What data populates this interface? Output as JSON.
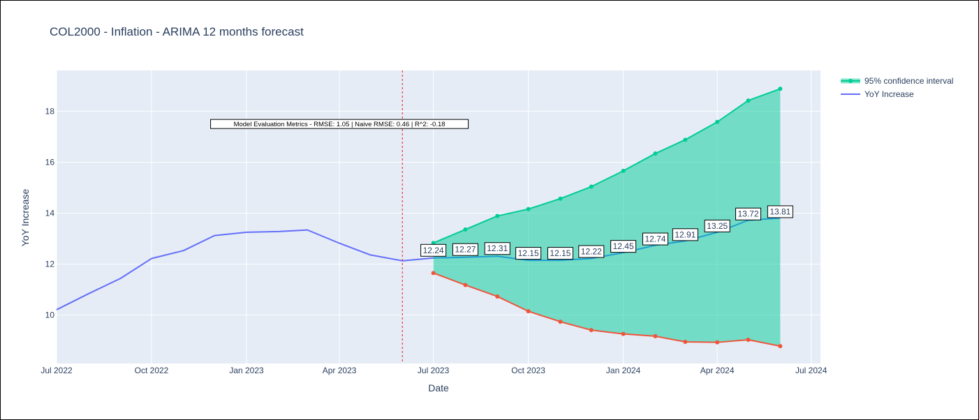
{
  "chart_data": {
    "type": "line",
    "title": "COL2000 - Inflation - ARIMA 12 months forecast",
    "xlabel": "Date",
    "ylabel": "YoY Increase",
    "xlim": [
      "2022-07-01",
      "2024-07-10"
    ],
    "ylim": [
      8.1,
      19.6
    ],
    "x_ticks": [
      {
        "date": "2022-07-01",
        "label": "Jul 2022"
      },
      {
        "date": "2022-10-01",
        "label": "Oct 2022"
      },
      {
        "date": "2023-01-01",
        "label": "Jan 2023"
      },
      {
        "date": "2023-04-01",
        "label": "Apr 2023"
      },
      {
        "date": "2023-07-01",
        "label": "Jul 2023"
      },
      {
        "date": "2023-10-01",
        "label": "Oct 2023"
      },
      {
        "date": "2024-01-01",
        "label": "Jan 2024"
      },
      {
        "date": "2024-04-01",
        "label": "Apr 2024"
      },
      {
        "date": "2024-07-01",
        "label": "Jul 2024"
      }
    ],
    "y_ticks": [
      {
        "value": 10,
        "label": "10"
      },
      {
        "value": 12,
        "label": "12"
      },
      {
        "value": 14,
        "label": "14"
      },
      {
        "value": 16,
        "label": "16"
      },
      {
        "value": 18,
        "label": "18"
      }
    ],
    "grid": true,
    "legend_position": "top-right",
    "legend": [
      {
        "label": "95% confidence interval",
        "color": "#00cc96"
      },
      {
        "label": "YoY Increase",
        "color": "#636efa"
      }
    ],
    "series": [
      {
        "name": "YoY Increase",
        "color": "#636efa",
        "x": [
          "2022-07-01",
          "2022-08-01",
          "2022-09-01",
          "2022-10-01",
          "2022-11-01",
          "2022-12-01",
          "2023-01-01",
          "2023-02-01",
          "2023-03-01",
          "2023-04-01",
          "2023-05-01",
          "2023-06-01",
          "2023-07-01"
        ],
        "y": [
          10.21,
          10.84,
          11.44,
          12.22,
          12.53,
          13.12,
          13.25,
          13.28,
          13.34,
          12.82,
          12.36,
          12.13,
          12.24
        ]
      },
      {
        "color": "#1f9fd1",
        "x": [
          "2023-07-01",
          "2023-08-01",
          "2023-09-01",
          "2023-10-01",
          "2023-11-01",
          "2023-12-01",
          "2024-01-01",
          "2024-02-01",
          "2024-03-01",
          "2024-04-01",
          "2024-05-01",
          "2024-06-01"
        ],
        "y": [
          12.24,
          12.27,
          12.31,
          12.15,
          12.15,
          12.22,
          12.45,
          12.74,
          12.91,
          13.25,
          13.72,
          13.81
        ],
        "labels": [
          "12.24",
          "12.27",
          "12.31",
          "12.15",
          "12.15",
          "12.22",
          "12.45",
          "12.74",
          "12.91",
          "13.25",
          "13.72",
          "13.81"
        ]
      },
      {
        "name": "95% confidence interval",
        "color": "#00cc96",
        "x": [
          "2023-07-01",
          "2023-08-01",
          "2023-09-01",
          "2023-10-01",
          "2023-11-01",
          "2023-12-01",
          "2024-01-01",
          "2024-02-01",
          "2024-03-01",
          "2024-04-01",
          "2024-05-01",
          "2024-06-01"
        ],
        "y": [
          12.83,
          13.36,
          13.89,
          14.16,
          14.57,
          15.04,
          15.66,
          16.34,
          16.88,
          17.58,
          18.42,
          18.88
        ]
      },
      {
        "color": "#ef553b",
        "x": [
          "2023-07-01",
          "2023-08-01",
          "2023-09-01",
          "2023-10-01",
          "2023-11-01",
          "2023-12-01",
          "2024-01-01",
          "2024-02-01",
          "2024-03-01",
          "2024-04-01",
          "2024-05-01",
          "2024-06-01"
        ],
        "y": [
          11.65,
          11.18,
          10.73,
          10.15,
          9.74,
          9.41,
          9.26,
          9.17,
          8.95,
          8.93,
          9.03,
          8.78
        ]
      }
    ],
    "vertical_line": {
      "date": "2023-06-01",
      "color": "#e8383d"
    },
    "annotation": {
      "text": "Model Evaluation Metrics - RMSE: 1.05 | Naive RMSE: 0.46 | R^2: -0.18",
      "x": "2023-04-01",
      "y": 17.5
    }
  }
}
